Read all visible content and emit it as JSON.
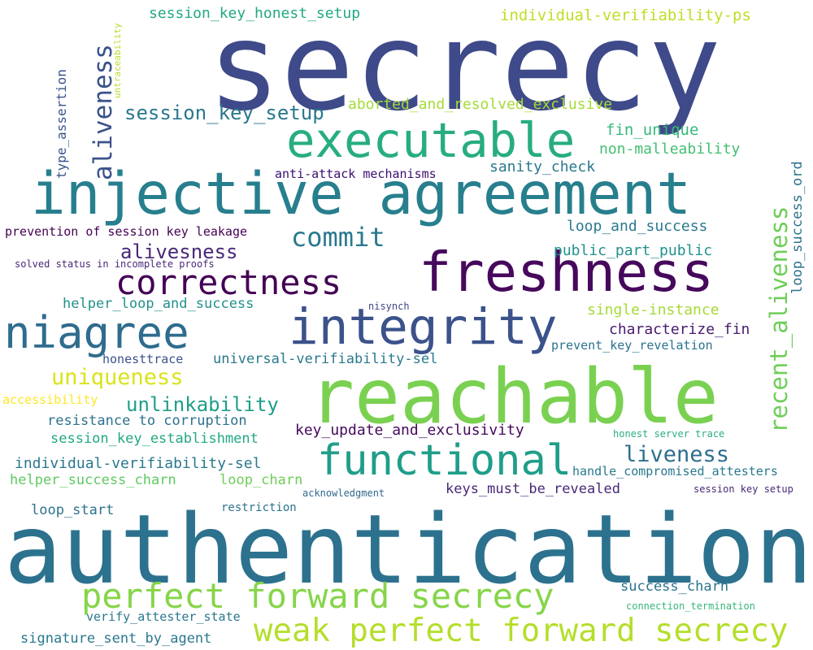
{
  "words": [
    {
      "text": "secrecy",
      "color": "#3e4a89"
    },
    {
      "text": "authentication",
      "color": "#2c728e"
    },
    {
      "text": "injective agreement",
      "color": "#277f8e"
    },
    {
      "text": "reachable",
      "color": "#7ad151"
    },
    {
      "text": "freshness",
      "color": "#46085c"
    },
    {
      "text": "integrity",
      "color": "#3b528b"
    },
    {
      "text": "executable",
      "color": "#27ad81"
    },
    {
      "text": "functional",
      "color": "#1f9e89"
    },
    {
      "text": "niagree",
      "color": "#2f6c8e"
    },
    {
      "text": "correctness",
      "color": "#440154"
    },
    {
      "text": "perfect forward secrecy",
      "color": "#86d549"
    },
    {
      "text": "weak perfect forward secrecy",
      "color": "#b5de2b"
    },
    {
      "text": "commit",
      "color": "#2a788e"
    },
    {
      "text": "aliveness",
      "color": "#3b528b"
    },
    {
      "text": "recent_aliveness",
      "color": "#6ece58"
    },
    {
      "text": "uniqueness",
      "color": "#dae319"
    },
    {
      "text": "unlinkability",
      "color": "#1f9e89"
    },
    {
      "text": "liveness",
      "color": "#2e6e8e"
    },
    {
      "text": "alivesness",
      "color": "#482878"
    },
    {
      "text": "session_key_setup",
      "color": "#2a788e"
    },
    {
      "text": "session_key_honest_setup",
      "color": "#22a884"
    },
    {
      "text": "individual-verifiability-ps",
      "color": "#bddf26"
    },
    {
      "text": "aborted_and_resolved_exclusive",
      "color": "#a5db36"
    },
    {
      "text": "fin_unique",
      "color": "#35b779"
    },
    {
      "text": "non-malleability",
      "color": "#44bf70"
    },
    {
      "text": "sanity_check",
      "color": "#2a788e"
    },
    {
      "text": "anti-attack mechanisms",
      "color": "#3b0f70"
    },
    {
      "text": "loop_and_success",
      "color": "#2a788e"
    },
    {
      "text": "public_part_public",
      "color": "#21918c"
    },
    {
      "text": "prevention of session key leakage",
      "color": "#440154"
    },
    {
      "text": "solved status in incomplete proofs",
      "color": "#482878"
    },
    {
      "text": "helper_loop_and_success",
      "color": "#21918c"
    },
    {
      "text": "nisynch",
      "color": "#414487"
    },
    {
      "text": "single-instance",
      "color": "#a5db36"
    },
    {
      "text": "characterize_fin",
      "color": "#481a6c"
    },
    {
      "text": "prevent_key_revelation",
      "color": "#2c728e"
    },
    {
      "text": "honesttrace",
      "color": "#3b528b"
    },
    {
      "text": "universal-verifiability-sel",
      "color": "#2a788e"
    },
    {
      "text": "accessibility",
      "color": "#fde725"
    },
    {
      "text": "resistance to corruption",
      "color": "#2c728e"
    },
    {
      "text": "key_update_and_exclusivity",
      "color": "#46085c"
    },
    {
      "text": "session_key_establishment",
      "color": "#22a884"
    },
    {
      "text": "honest server trace",
      "color": "#29af7f"
    },
    {
      "text": "individual-verifiability-sel",
      "color": "#2a788e"
    },
    {
      "text": "handle_compromised_attesters",
      "color": "#2a788e"
    },
    {
      "text": "helper_success_charn",
      "color": "#5ec962"
    },
    {
      "text": "loop_charn",
      "color": "#6ece58"
    },
    {
      "text": "acknowledgment",
      "color": "#31688e"
    },
    {
      "text": "keys_must_be_revealed",
      "color": "#482878"
    },
    {
      "text": "session key setup",
      "color": "#482878"
    },
    {
      "text": "loop_start",
      "color": "#2c728e"
    },
    {
      "text": "restriction",
      "color": "#2c728e"
    },
    {
      "text": "success_charn",
      "color": "#2c728e"
    },
    {
      "text": "connection_termination",
      "color": "#35b779"
    },
    {
      "text": "verify_attester_state",
      "color": "#2a788e"
    },
    {
      "text": "signature_sent_by_agent",
      "color": "#2a788e"
    },
    {
      "text": "type_assertion",
      "color": "#3b528b"
    },
    {
      "text": "untraceability",
      "color": "#b5de2b"
    },
    {
      "text": "loop_success_ord",
      "color": "#2c728e"
    }
  ]
}
